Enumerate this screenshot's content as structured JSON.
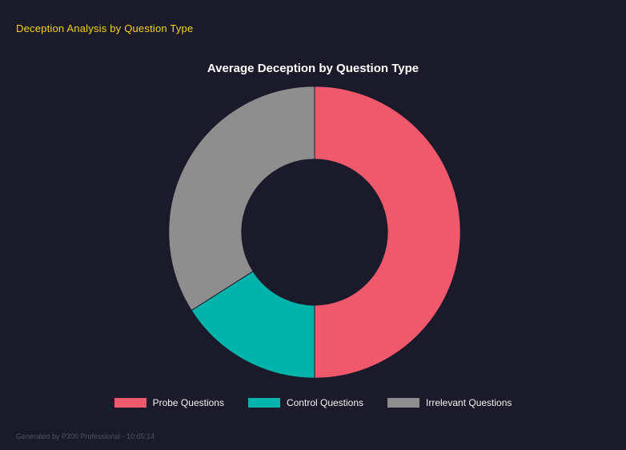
{
  "header": {
    "title": "Deception Analysis by Question Type"
  },
  "chart_data": {
    "type": "pie",
    "variant": "donut",
    "title": "Average Deception by Question Type",
    "labels": [
      "Probe Questions",
      "Control Questions",
      "Irrelevant Questions"
    ],
    "values": [
      50,
      16,
      34
    ],
    "unit": "percent_of_total",
    "colors": [
      "#f0586c",
      "#00b3ab",
      "#8e8e8e"
    ],
    "background_color": "#1a1a2b",
    "cutout_ratio": 0.5,
    "start_angle_deg": 0,
    "direction": "clockwise",
    "legend_position": "bottom"
  },
  "footer": {
    "text": "Generated by P300 Professional - 10:05:14"
  }
}
